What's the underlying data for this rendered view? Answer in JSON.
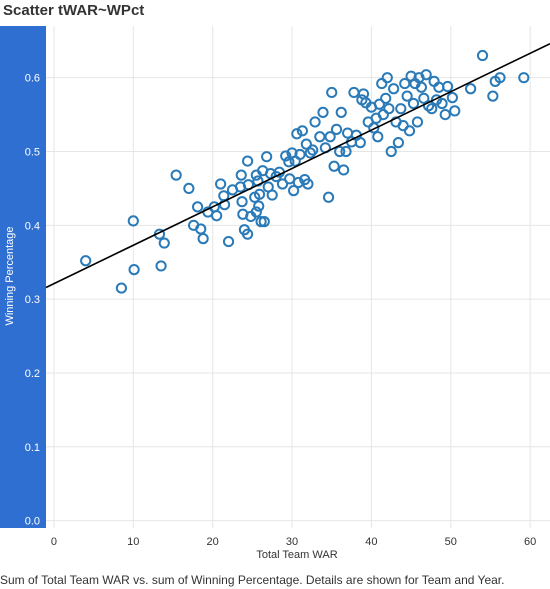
{
  "title": "Scatter tWAR~WPct",
  "caption": "Sum of Total Team WAR vs. sum of Winning Percentage.  Details are shown for Team and Year.",
  "colors": {
    "axis_band": "#2e6fd1",
    "marker": "#2a7ab8",
    "trend": "#000000",
    "grid": "#e6e6e6"
  },
  "chart_data": {
    "type": "scatter",
    "xlabel": "Total Team WAR",
    "ylabel": "Winning Percentage",
    "xlim": [
      -1,
      62.5
    ],
    "ylim": [
      -0.01,
      0.67
    ],
    "x_ticks": [
      0,
      10,
      20,
      30,
      40,
      50,
      60
    ],
    "y_ticks": [
      0.0,
      0.1,
      0.2,
      0.3,
      0.4,
      0.5,
      0.6
    ],
    "y_tick_labels": [
      "0.0",
      "0.1",
      "0.2",
      "0.3",
      "0.4",
      "0.5",
      "0.6"
    ],
    "grid": true,
    "trend_line": {
      "intercept": 0.321,
      "slope": 0.0052
    },
    "points": [
      [
        4,
        0.352
      ],
      [
        8.5,
        0.315
      ],
      [
        10.1,
        0.34
      ],
      [
        10,
        0.406
      ],
      [
        13.3,
        0.388
      ],
      [
        13.5,
        0.345
      ],
      [
        13.9,
        0.376
      ],
      [
        15.4,
        0.468
      ],
      [
        17,
        0.45
      ],
      [
        17.6,
        0.4
      ],
      [
        18.1,
        0.425
      ],
      [
        18.5,
        0.395
      ],
      [
        18.8,
        0.382
      ],
      [
        19.4,
        0.418
      ],
      [
        20.2,
        0.425
      ],
      [
        20.5,
        0.413
      ],
      [
        21,
        0.456
      ],
      [
        21.4,
        0.44
      ],
      [
        21.5,
        0.428
      ],
      [
        22,
        0.378
      ],
      [
        22.5,
        0.448
      ],
      [
        23.6,
        0.468
      ],
      [
        23.5,
        0.452
      ],
      [
        23.7,
        0.432
      ],
      [
        23.8,
        0.415
      ],
      [
        24,
        0.394
      ],
      [
        24.4,
        0.388
      ],
      [
        24.5,
        0.455
      ],
      [
        24.4,
        0.487
      ],
      [
        24.8,
        0.412
      ],
      [
        25.3,
        0.438
      ],
      [
        25.5,
        0.418
      ],
      [
        25.7,
        0.46
      ],
      [
        25.9,
        0.442
      ],
      [
        25.8,
        0.426
      ],
      [
        25.5,
        0.468
      ],
      [
        26.1,
        0.405
      ],
      [
        26.5,
        0.405
      ],
      [
        26.3,
        0.474
      ],
      [
        26.8,
        0.493
      ],
      [
        27,
        0.452
      ],
      [
        27.3,
        0.47
      ],
      [
        27.5,
        0.441
      ],
      [
        28,
        0.466
      ],
      [
        28.4,
        0.472
      ],
      [
        28.8,
        0.456
      ],
      [
        29.2,
        0.494
      ],
      [
        29.6,
        0.486
      ],
      [
        29.7,
        0.463
      ],
      [
        30,
        0.498
      ],
      [
        30.2,
        0.447
      ],
      [
        30.4,
        0.487
      ],
      [
        30.6,
        0.524
      ],
      [
        30.8,
        0.458
      ],
      [
        31,
        0.496
      ],
      [
        31.3,
        0.528
      ],
      [
        31.6,
        0.462
      ],
      [
        31.8,
        0.51
      ],
      [
        32,
        0.456
      ],
      [
        32.3,
        0.498
      ],
      [
        32.6,
        0.502
      ],
      [
        32.9,
        0.54
      ],
      [
        33.5,
        0.52
      ],
      [
        33.9,
        0.553
      ],
      [
        34.2,
        0.505
      ],
      [
        34.6,
        0.438
      ],
      [
        34.8,
        0.52
      ],
      [
        35,
        0.58
      ],
      [
        35.3,
        0.48
      ],
      [
        35.6,
        0.53
      ],
      [
        36,
        0.5
      ],
      [
        36.2,
        0.553
      ],
      [
        36.5,
        0.475
      ],
      [
        36.8,
        0.5
      ],
      [
        37,
        0.525
      ],
      [
        37.5,
        0.513
      ],
      [
        37.8,
        0.58
      ],
      [
        38.1,
        0.522
      ],
      [
        38.6,
        0.512
      ],
      [
        38.8,
        0.57
      ],
      [
        39,
        0.578
      ],
      [
        39.3,
        0.566
      ],
      [
        39.6,
        0.54
      ],
      [
        40,
        0.56
      ],
      [
        40.3,
        0.532
      ],
      [
        40.6,
        0.545
      ],
      [
        40.8,
        0.52
      ],
      [
        41,
        0.564
      ],
      [
        41.3,
        0.592
      ],
      [
        41.5,
        0.55
      ],
      [
        41.8,
        0.572
      ],
      [
        42,
        0.6
      ],
      [
        42.2,
        0.558
      ],
      [
        42.5,
        0.5
      ],
      [
        42.8,
        0.585
      ],
      [
        43.1,
        0.54
      ],
      [
        43.4,
        0.512
      ],
      [
        43.7,
        0.558
      ],
      [
        44,
        0.535
      ],
      [
        44.2,
        0.592
      ],
      [
        44.5,
        0.575
      ],
      [
        44.8,
        0.528
      ],
      [
        45,
        0.602
      ],
      [
        45.3,
        0.565
      ],
      [
        45.5,
        0.592
      ],
      [
        45.8,
        0.54
      ],
      [
        46,
        0.6
      ],
      [
        46.3,
        0.587
      ],
      [
        46.6,
        0.572
      ],
      [
        46.9,
        0.604
      ],
      [
        47.2,
        0.562
      ],
      [
        47.6,
        0.558
      ],
      [
        47.9,
        0.595
      ],
      [
        48.2,
        0.57
      ],
      [
        48.5,
        0.587
      ],
      [
        48.9,
        0.565
      ],
      [
        49.3,
        0.55
      ],
      [
        49.6,
        0.588
      ],
      [
        50.2,
        0.573
      ],
      [
        50.5,
        0.555
      ],
      [
        52.5,
        0.585
      ],
      [
        54,
        0.63
      ],
      [
        55.3,
        0.575
      ],
      [
        55.6,
        0.595
      ],
      [
        56.2,
        0.6
      ],
      [
        59.2,
        0.6
      ]
    ]
  }
}
